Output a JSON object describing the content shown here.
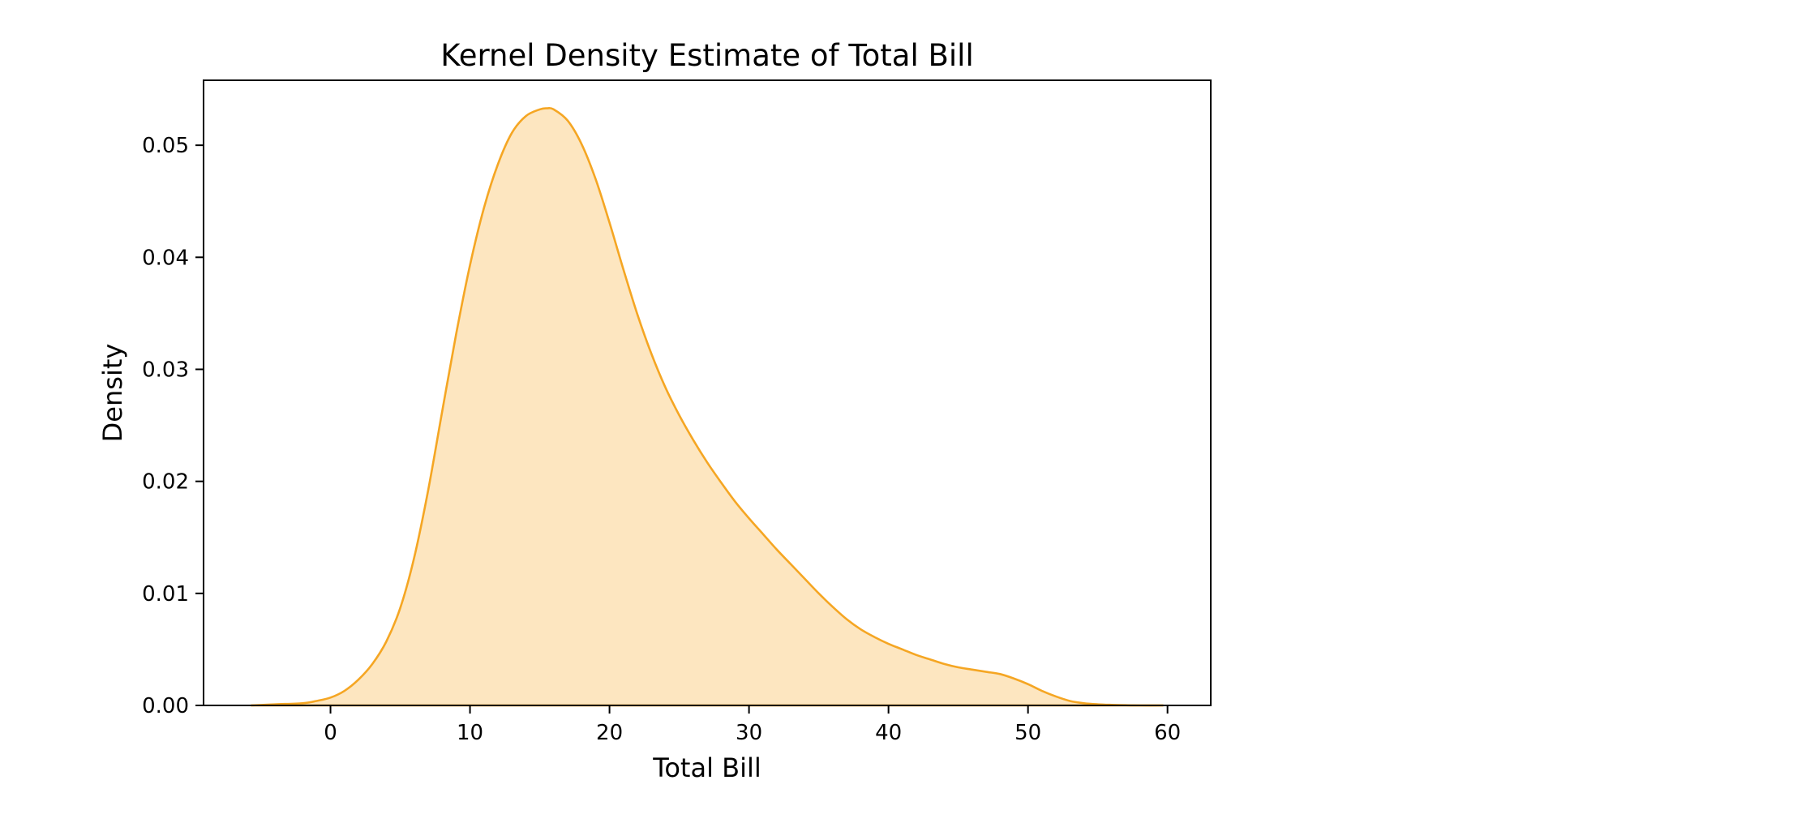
{
  "chart_data": {
    "type": "area",
    "title": "Kernel Density Estimate of Total Bill",
    "xlabel": "Total Bill",
    "ylabel": "Density",
    "xlim": [
      -9.1,
      63.1
    ],
    "ylim": [
      0,
      0.0558
    ],
    "xticks": [
      0,
      10,
      20,
      30,
      40,
      50,
      60
    ],
    "xtick_labels": [
      "0",
      "10",
      "20",
      "30",
      "40",
      "50",
      "60"
    ],
    "yticks": [
      0.0,
      0.01,
      0.02,
      0.03,
      0.04,
      0.05
    ],
    "ytick_labels": [
      "0.00",
      "0.01",
      "0.02",
      "0.03",
      "0.04",
      "0.05"
    ],
    "grid": false,
    "series": [
      {
        "line_color": "#f5a623",
        "fill_color": "#fde6c0",
        "x": [
          -5.7,
          -4,
          -2,
          -1,
          0,
          1,
          2,
          3,
          4,
          5,
          6,
          7,
          8,
          9,
          10,
          11,
          12,
          13,
          14,
          15,
          15.5,
          16,
          17,
          18,
          19,
          20,
          21,
          22,
          23,
          24,
          25,
          26,
          27,
          28,
          29,
          30,
          31,
          32,
          33,
          34,
          35,
          36,
          37,
          38,
          39,
          40,
          41,
          42,
          43,
          44,
          45,
          46,
          47,
          48,
          49,
          50,
          51,
          52,
          53,
          54,
          55,
          56,
          57,
          58,
          59.7
        ],
        "y": [
          0.0,
          0.0001,
          0.0002,
          0.0004,
          0.0007,
          0.0013,
          0.0023,
          0.0037,
          0.0057,
          0.0087,
          0.0132,
          0.0192,
          0.0262,
          0.0331,
          0.0393,
          0.0444,
          0.0483,
          0.0511,
          0.0526,
          0.0532,
          0.0533,
          0.0532,
          0.0522,
          0.0501,
          0.047,
          0.0431,
          0.0389,
          0.0349,
          0.0314,
          0.0284,
          0.0259,
          0.0237,
          0.0217,
          0.0199,
          0.0182,
          0.0167,
          0.0153,
          0.0139,
          0.0126,
          0.0113,
          0.01,
          0.0088,
          0.0077,
          0.0068,
          0.0061,
          0.0055,
          0.005,
          0.0045,
          0.0041,
          0.0037,
          0.0034,
          0.0032,
          0.003,
          0.0028,
          0.0024,
          0.0019,
          0.0013,
          0.0008,
          0.0004,
          0.0002,
          0.0001,
          5e-05,
          2e-05,
          0.0,
          0.0
        ]
      }
    ]
  }
}
